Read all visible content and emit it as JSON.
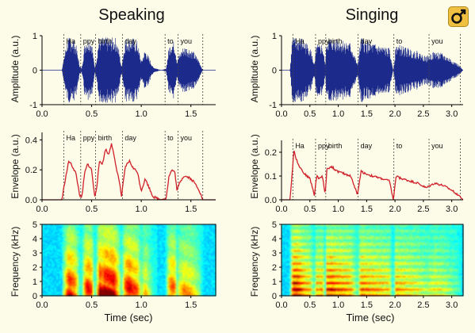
{
  "chart_data": [
    {
      "id": "speaking-waveform",
      "type": "line",
      "title": "Speaking",
      "ylabel": "Amplitude (a.u.)",
      "xlabel": "",
      "xlim": [
        0,
        1.75
      ],
      "ylim": [
        -1,
        1
      ],
      "xticks": [
        "0.0",
        "0.5",
        "1.0",
        "1.5"
      ],
      "yticks": [
        "-1",
        "0",
        "1"
      ],
      "syllables": [
        {
          "label": "Ha",
          "start": 0.22,
          "end": 0.39
        },
        {
          "label": "ppy",
          "start": 0.39,
          "end": 0.54
        },
        {
          "label": "birth",
          "start": 0.54,
          "end": 0.81
        },
        {
          "label": "day",
          "start": 0.81,
          "end": 1.24
        },
        {
          "label": "to",
          "start": 1.24,
          "end": 1.37
        },
        {
          "label": "you",
          "start": 1.37,
          "end": 1.62
        }
      ],
      "color": "#1c2a8c"
    },
    {
      "id": "singing-waveform",
      "type": "line",
      "title": "Singing",
      "ylabel": "Amplitude (a.u.)",
      "xlabel": "",
      "xlim": [
        0,
        3.2
      ],
      "ylim": [
        -1,
        1
      ],
      "xticks": [
        "0.0",
        "0.5",
        "1.0",
        "1.5",
        "2.0",
        "2.5",
        "3.0"
      ],
      "yticks": [
        "-1",
        "0",
        "1"
      ],
      "syllables": [
        {
          "label": "Ha",
          "start": 0.2,
          "end": 0.6
        },
        {
          "label": "ppy",
          "start": 0.6,
          "end": 0.78
        },
        {
          "label": "birth",
          "start": 0.78,
          "end": 1.35
        },
        {
          "label": "day",
          "start": 1.35,
          "end": 1.98
        },
        {
          "label": "to",
          "start": 1.98,
          "end": 2.6
        },
        {
          "label": "you",
          "start": 2.6,
          "end": 3.15
        }
      ],
      "color": "#1c2a8c"
    },
    {
      "id": "speaking-envelope",
      "type": "line",
      "ylabel": "Envelope (a.u.)",
      "xlabel": "",
      "xlim": [
        0,
        1.75
      ],
      "ylim": [
        0,
        0.45
      ],
      "xticks": [
        "0.0",
        "0.5",
        "1.0",
        "1.5"
      ],
      "yticks": [
        "0.0",
        "0.2",
        "0.4"
      ],
      "x": [
        0.0,
        0.2,
        0.23,
        0.27,
        0.3,
        0.34,
        0.38,
        0.4,
        0.43,
        0.46,
        0.5,
        0.53,
        0.55,
        0.58,
        0.61,
        0.64,
        0.67,
        0.7,
        0.74,
        0.78,
        0.8,
        0.84,
        0.88,
        0.92,
        0.96,
        1.0,
        1.04,
        1.08,
        1.12,
        1.2,
        1.25,
        1.28,
        1.31,
        1.34,
        1.36,
        1.39,
        1.43,
        1.48,
        1.53,
        1.58,
        1.62,
        1.75
      ],
      "y": [
        0.0,
        0.0,
        0.12,
        0.26,
        0.23,
        0.18,
        0.03,
        0.01,
        0.18,
        0.24,
        0.2,
        0.02,
        0.08,
        0.26,
        0.24,
        0.34,
        0.3,
        0.38,
        0.24,
        0.12,
        0.02,
        0.22,
        0.26,
        0.21,
        0.19,
        0.06,
        0.14,
        0.08,
        0.02,
        0.0,
        0.01,
        0.16,
        0.2,
        0.18,
        0.06,
        0.12,
        0.16,
        0.15,
        0.12,
        0.07,
        0.0,
        0.0
      ],
      "color": "#d0202a"
    },
    {
      "id": "singing-envelope",
      "type": "line",
      "ylabel": "Envelope (a.u.)",
      "xlabel": "",
      "xlim": [
        0,
        3.2
      ],
      "ylim": [
        0,
        0.25
      ],
      "xticks": [
        "0.0",
        "0.5",
        "1.0",
        "1.5",
        "2.0",
        "2.5",
        "3.0"
      ],
      "yticks": [
        "0.0",
        "0.1",
        "0.2"
      ],
      "x": [
        0.0,
        0.15,
        0.22,
        0.26,
        0.32,
        0.4,
        0.5,
        0.58,
        0.62,
        0.66,
        0.72,
        0.77,
        0.8,
        0.88,
        0.98,
        1.1,
        1.22,
        1.34,
        1.4,
        1.48,
        1.6,
        1.75,
        1.9,
        1.97,
        2.02,
        2.1,
        2.25,
        2.4,
        2.55,
        2.62,
        2.7,
        2.85,
        3.0,
        3.12,
        3.2
      ],
      "y": [
        0.0,
        0.0,
        0.21,
        0.17,
        0.14,
        0.11,
        0.09,
        0.02,
        0.1,
        0.09,
        0.1,
        0.02,
        0.13,
        0.14,
        0.12,
        0.11,
        0.1,
        0.02,
        0.12,
        0.11,
        0.1,
        0.09,
        0.08,
        0.0,
        0.1,
        0.09,
        0.08,
        0.07,
        0.05,
        0.06,
        0.07,
        0.06,
        0.04,
        0.02,
        0.0
      ],
      "color": "#d0202a"
    },
    {
      "id": "speaking-spectrogram",
      "type": "heatmap",
      "ylabel": "Frequency (kHz)",
      "xlabel": "Time (sec)",
      "xlim": [
        0,
        1.75
      ],
      "ylim": [
        0,
        5
      ],
      "xticks": [
        "0.0",
        "0.5",
        "1.0",
        "1.5"
      ],
      "yticks": [
        "0",
        "1",
        "2",
        "3",
        "4",
        "5"
      ]
    },
    {
      "id": "singing-spectrogram",
      "type": "heatmap",
      "ylabel": "Frequency (kHz)",
      "xlabel": "Time (sec)",
      "xlim": [
        0,
        3.2
      ],
      "ylim": [
        0,
        5
      ],
      "xticks": [
        "0.0",
        "0.5",
        "1.0",
        "1.5",
        "2.0",
        "2.5",
        "3.0"
      ],
      "yticks": [
        "0",
        "1",
        "2",
        "3",
        "4",
        "5"
      ]
    }
  ],
  "colors": {
    "background": "#fdfce8",
    "logo_background": "#f0c040",
    "logo_glyph": "#111111"
  },
  "logo": {
    "icon": "gender-symbol-icon"
  }
}
